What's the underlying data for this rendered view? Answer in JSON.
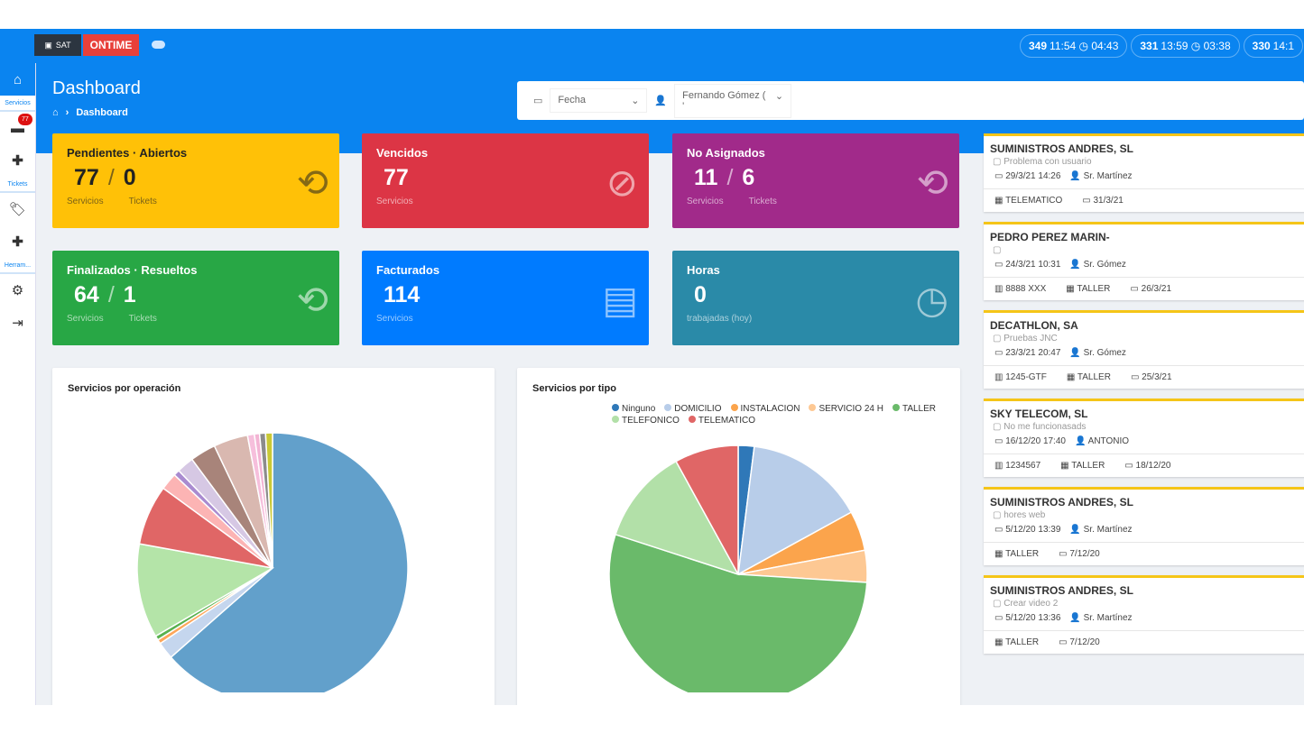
{
  "topbar": {
    "logo_sat": "SAT",
    "logo_ontime": "ONTIME",
    "timers": [
      {
        "id": "349",
        "start": "11:54",
        "elapsed": "04:43"
      },
      {
        "id": "331",
        "start": "13:59",
        "elapsed": "03:38"
      },
      {
        "id": "330",
        "start": "14:1",
        "elapsed": ""
      }
    ]
  },
  "sidebar": {
    "servicios": "Servicios",
    "badge": "77",
    "tickets": "Tickets",
    "herramientas": "Herram..."
  },
  "header": {
    "title": "Dashboard",
    "breadcrumb": "Dashboard"
  },
  "filters": {
    "date": "Fecha",
    "user": "Fernando Gómez ( '"
  },
  "stats": [
    {
      "title": "Pendientes · Abiertos",
      "v1": "77",
      "v2": "0",
      "l1": "Servicios",
      "l2": "Tickets",
      "color": "#ffc107"
    },
    {
      "title": "Vencidos",
      "v1": "77",
      "l1": "Servicios",
      "color": "#dc3545"
    },
    {
      "title": "No Asignados",
      "v1": "11",
      "v2": "6",
      "l1": "Servicios",
      "l2": "Tickets",
      "color": "#a12a8a"
    },
    {
      "title": "Finalizados · Resueltos",
      "v1": "64",
      "v2": "1",
      "l1": "Servicios",
      "l2": "Tickets",
      "color": "#28a745"
    },
    {
      "title": "Facturados",
      "v1": "114",
      "l1": "Servicios",
      "color": "#007bff"
    },
    {
      "title": "Horas",
      "v1": "0",
      "l1": "trabajadas (hoy)",
      "color": "#2a8aa8"
    }
  ],
  "chart_data": [
    {
      "type": "pie",
      "title": "Servicios por operación",
      "values": [
        62,
        2,
        0.5,
        0.5,
        11,
        7,
        2,
        0.7,
        2,
        3,
        4,
        0.8,
        0.6,
        0.7,
        0.8
      ],
      "colors": [
        "#62a0cb",
        "#c5d6ee",
        "#fda65a",
        "#58b14e",
        "#b4e4a8",
        "#e06666",
        "#fcb4b4",
        "#a98bd0",
        "#d6c8e4",
        "#a8847a",
        "#d9b8b0",
        "#f6bfdc",
        "#f3b4d4",
        "#8c8c8c",
        "#c9c936"
      ]
    },
    {
      "type": "pie",
      "title": "Servicios por tipo",
      "categories": [
        "Ninguno",
        "DOMICILIO",
        "INSTALACION",
        "SERVICIO 24 H",
        "TALLER",
        "TELEFONICO",
        "TELEMATICO"
      ],
      "values": [
        2,
        15,
        5,
        4,
        54,
        12,
        8
      ],
      "colors": [
        "#2f78b8",
        "#b8cde9",
        "#fba44c",
        "#fdc893",
        "#6aba6a",
        "#b2e0a8",
        "#e06666"
      ]
    }
  ],
  "tickets": [
    {
      "name": "SUMINISTROS ANDRES, SL",
      "desc": "Problema con usuario",
      "date": "29/3/21 14:26",
      "tech": "Sr. Martínez",
      "plate": "",
      "type": "TELEMATICO",
      "due": "31/3/21"
    },
    {
      "name": "PEDRO PEREZ MARIN-",
      "desc": "",
      "date": "24/3/21 10:31",
      "tech": "Sr. Gómez",
      "plate": "8888 XXX",
      "type": "TALLER",
      "due": "26/3/21"
    },
    {
      "name": "DECATHLON, SA",
      "desc": "Pruebas JNC",
      "date": "23/3/21 20:47",
      "tech": "Sr. Gómez",
      "plate": "1245-GTF",
      "type": "TALLER",
      "due": "25/3/21"
    },
    {
      "name": "SKY TELECOM, SL",
      "desc": "No me funcionasads",
      "date": "16/12/20 17:40",
      "tech": "ANTONIO",
      "plate": "1234567",
      "type": "TALLER",
      "due": "18/12/20"
    },
    {
      "name": "SUMINISTROS ANDRES, SL",
      "desc": "hores web",
      "date": "5/12/20 13:39",
      "tech": "Sr. Martínez",
      "plate": "",
      "type": "TALLER",
      "due": "7/12/20"
    },
    {
      "name": "SUMINISTROS ANDRES, SL",
      "desc": "Crear video 2",
      "date": "5/12/20 13:36",
      "tech": "Sr. Martínez",
      "plate": "",
      "type": "TALLER",
      "due": "7/12/20"
    }
  ]
}
